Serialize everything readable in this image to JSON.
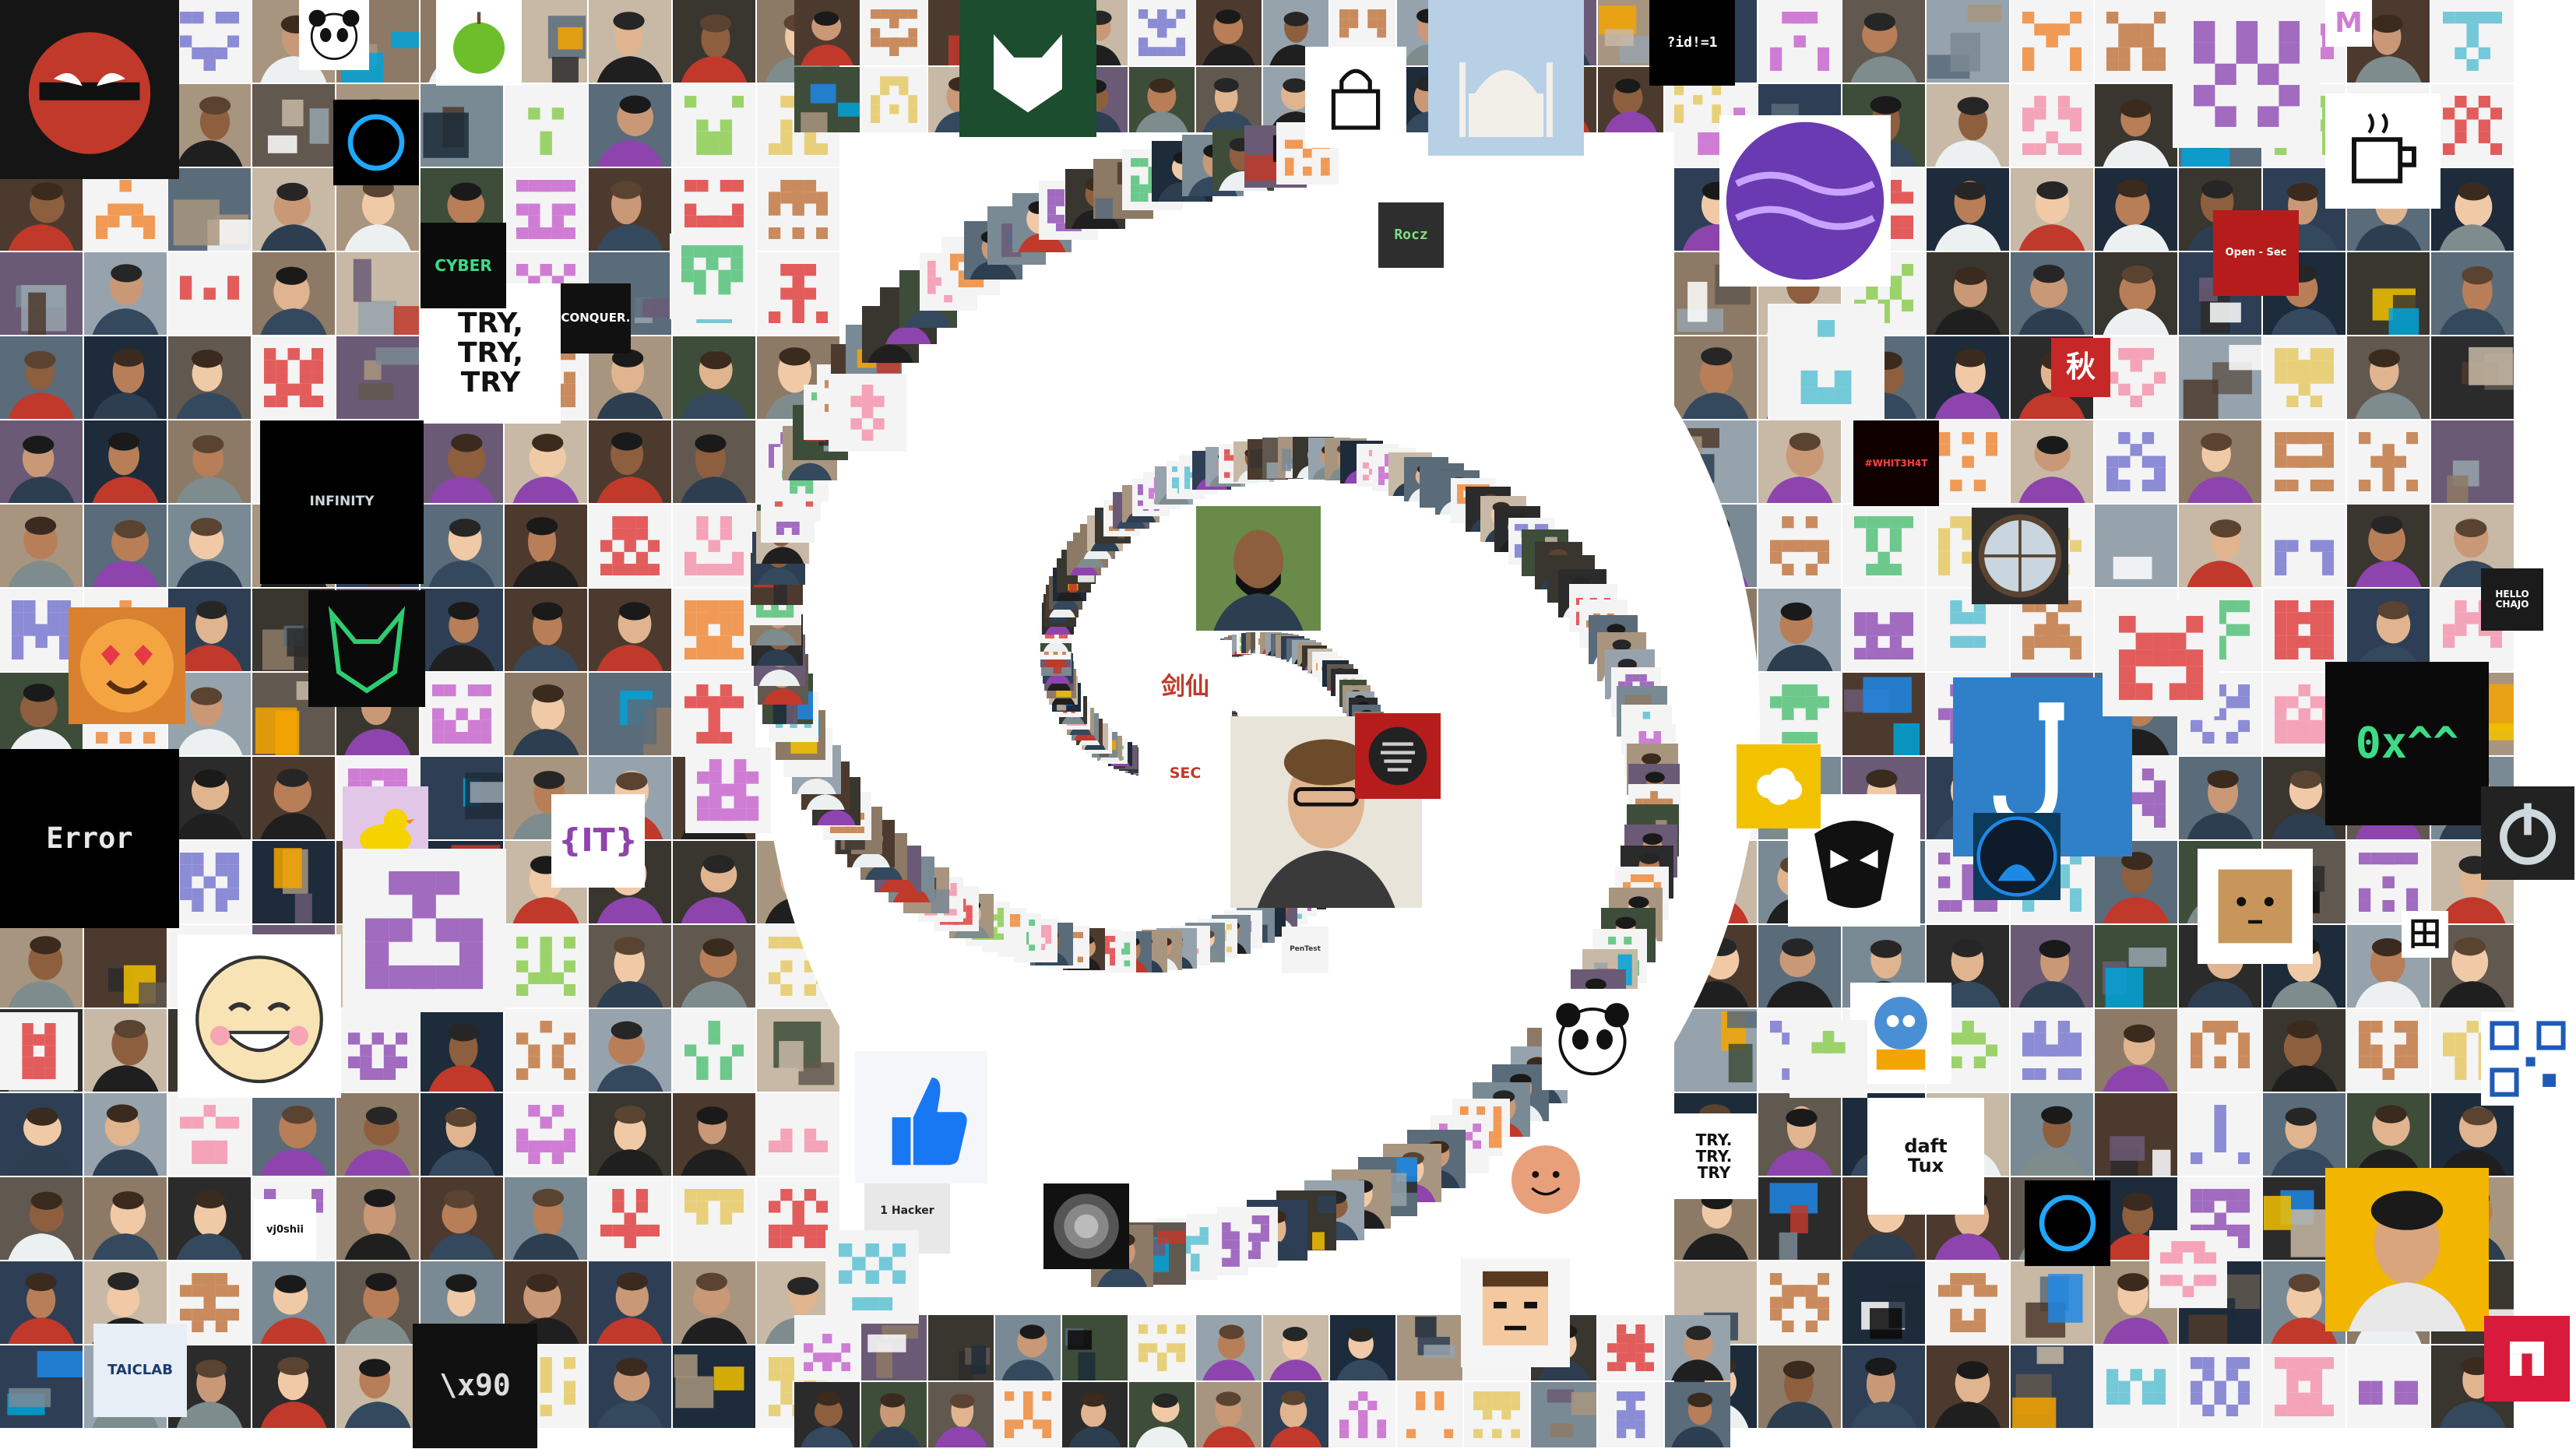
{
  "image": {
    "background": "#ffffff",
    "layout": "spiral mosaic of square avatar tiles around a white center"
  },
  "palette": {
    "identicon_colors": [
      "#a16bc0",
      "#e35c5c",
      "#6cc98b",
      "#e8d07a",
      "#f09a56",
      "#74c9d8",
      "#cf7dd4",
      "#8b8bd6",
      "#f5a3b8",
      "#9bd36a",
      "#c98b5d"
    ],
    "photo_colors": [
      "#2b2b2b",
      "#5a6b7a",
      "#8d7a66",
      "#3e4d3a",
      "#6b5a75",
      "#a8957f",
      "#1d2b3a",
      "#7a8a94",
      "#4d3a2e",
      "#c7b9a6",
      "#2e3f55",
      "#61584f",
      "#96a3ad",
      "#39352f"
    ],
    "accent_colors": [
      "#0a0a0a",
      "#f2c200",
      "#1e88e5",
      "#c0392b",
      "#ffffff",
      "#f4a400",
      "#00a3d9"
    ]
  },
  "text_tiles": {
    "try": "TRY,\nTRY,\nTRY",
    "try_conquer": "TRY.\nTRY.\nTRY",
    "conquer": "CONQUER.",
    "error": "Error",
    "hex": "0x^^",
    "it_logo": "{IT}",
    "user_code": "?id!=1",
    "x90": "\\x90",
    "infinity": "INFINITY",
    "rocz": "Rocz",
    "vj0shii": "vj0shii",
    "whit3h4t": "#WHIT3H4T",
    "open_sec": "Open - Sec",
    "taiclab": "TAICLAB",
    "jian_xian": "剑仙",
    "sec": "SEC",
    "tian": "田",
    "qiu": "秋",
    "hello": "HELLO\nCHAJO",
    "pentest": "PenTest",
    "hackerone": "1 Hacker",
    "daft_tux": "daft\nTux",
    "letters": "M",
    "cyber": "CYBER"
  }
}
